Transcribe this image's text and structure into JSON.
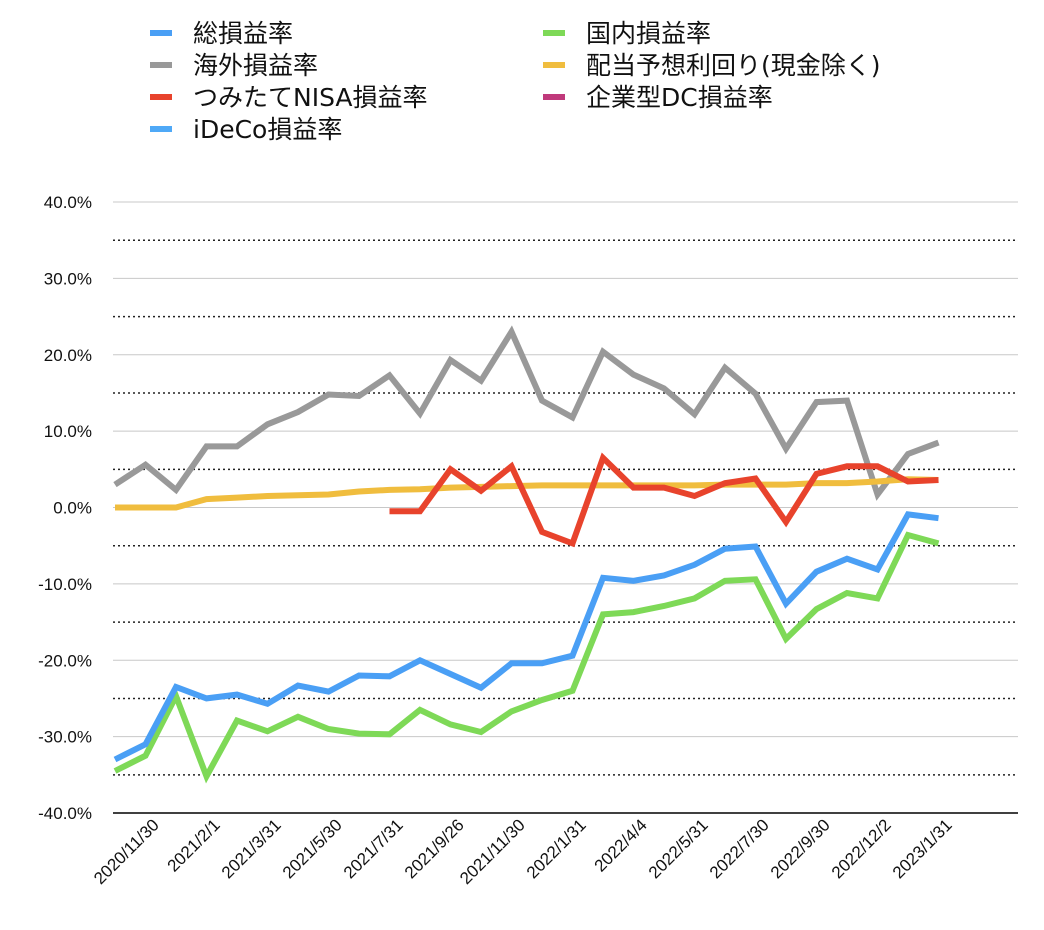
{
  "chart_data": {
    "type": "line",
    "title": "",
    "xlabel": "",
    "ylabel": "",
    "ylim": [
      -0.4,
      0.4
    ],
    "yticks": [
      0.4,
      0.3,
      0.2,
      0.1,
      0.0,
      -0.1,
      -0.2,
      -0.3,
      -0.4
    ],
    "ytick_labels": [
      "40.0%",
      "30.0%",
      "20.0%",
      "10.0%",
      "0.0%",
      "-10.0%",
      "-20.0%",
      "-30.0%",
      "-40.0%"
    ],
    "grid": "solid lines at labeled ticks, dotted lines at midpoints",
    "legend_position": "top",
    "x_tick_labels": [
      "2020/11/30",
      "2021/2/1",
      "2021/3/31",
      "2021/5/30",
      "2021/7/31",
      "2021/9/26",
      "2021/11/30",
      "2022/1/31",
      "2022/4/4",
      "2022/5/31",
      "2022/7/30",
      "2022/9/30",
      "2022/12/2",
      "2023/1/31"
    ],
    "series": [
      {
        "name": "総損益率",
        "color": "#4a9ff5",
        "values": [
          -0.33,
          -0.31,
          -0.235,
          -0.25,
          -0.245,
          -0.257,
          -0.233,
          -0.241,
          -0.22,
          -0.221,
          -0.2,
          -0.218,
          -0.236,
          -0.204,
          -0.204,
          -0.194,
          -0.092,
          -0.096,
          -0.089,
          -0.075,
          -0.054,
          -0.051,
          -0.126,
          -0.084,
          -0.067,
          -0.081,
          -0.009,
          -0.014
        ]
      },
      {
        "name": "国内損益率",
        "color": "#7ed957",
        "values": [
          -0.345,
          -0.325,
          -0.247,
          -0.352,
          -0.279,
          -0.293,
          -0.274,
          -0.29,
          -0.296,
          -0.297,
          -0.265,
          -0.284,
          -0.294,
          -0.267,
          -0.252,
          -0.24,
          -0.14,
          -0.137,
          -0.129,
          -0.119,
          -0.096,
          -0.094,
          -0.172,
          -0.133,
          -0.112,
          -0.119,
          -0.036,
          -0.047
        ]
      },
      {
        "name": "海外損益率",
        "color": "#999999",
        "values": [
          0.03,
          0.056,
          0.023,
          0.08,
          0.08,
          0.109,
          0.125,
          0.148,
          0.146,
          0.173,
          0.123,
          0.193,
          0.166,
          0.23,
          0.14,
          0.118,
          0.204,
          0.174,
          0.156,
          0.122,
          0.183,
          0.149,
          0.077,
          0.138,
          0.14,
          0.017,
          0.07,
          0.085
        ]
      },
      {
        "name": "配当予想利回り(現金除く)",
        "color": "#f0bd3e",
        "values": [
          0.0,
          0.0,
          0.0,
          0.011,
          0.013,
          0.015,
          0.016,
          0.017,
          0.021,
          0.023,
          0.024,
          0.026,
          0.027,
          0.028,
          0.029,
          0.029,
          0.029,
          0.029,
          0.029,
          0.029,
          0.03,
          0.03,
          0.03,
          0.032,
          0.032,
          0.034,
          0.037,
          0.036
        ]
      },
      {
        "name": "つみたてNISA損益率",
        "color": "#e8432c",
        "values": [
          null,
          null,
          null,
          null,
          null,
          null,
          null,
          null,
          null,
          -0.005,
          -0.005,
          0.05,
          0.022,
          0.054,
          -0.032,
          -0.047,
          0.065,
          0.026,
          0.026,
          0.015,
          0.032,
          0.038,
          -0.019,
          0.044,
          0.054,
          0.054,
          0.034,
          0.036
        ]
      },
      {
        "name": "企業型DC損益率",
        "color": "#c0397b",
        "values": []
      },
      {
        "name": "iDeCo損益率",
        "color": "#4fa9f7",
        "values": []
      }
    ]
  }
}
